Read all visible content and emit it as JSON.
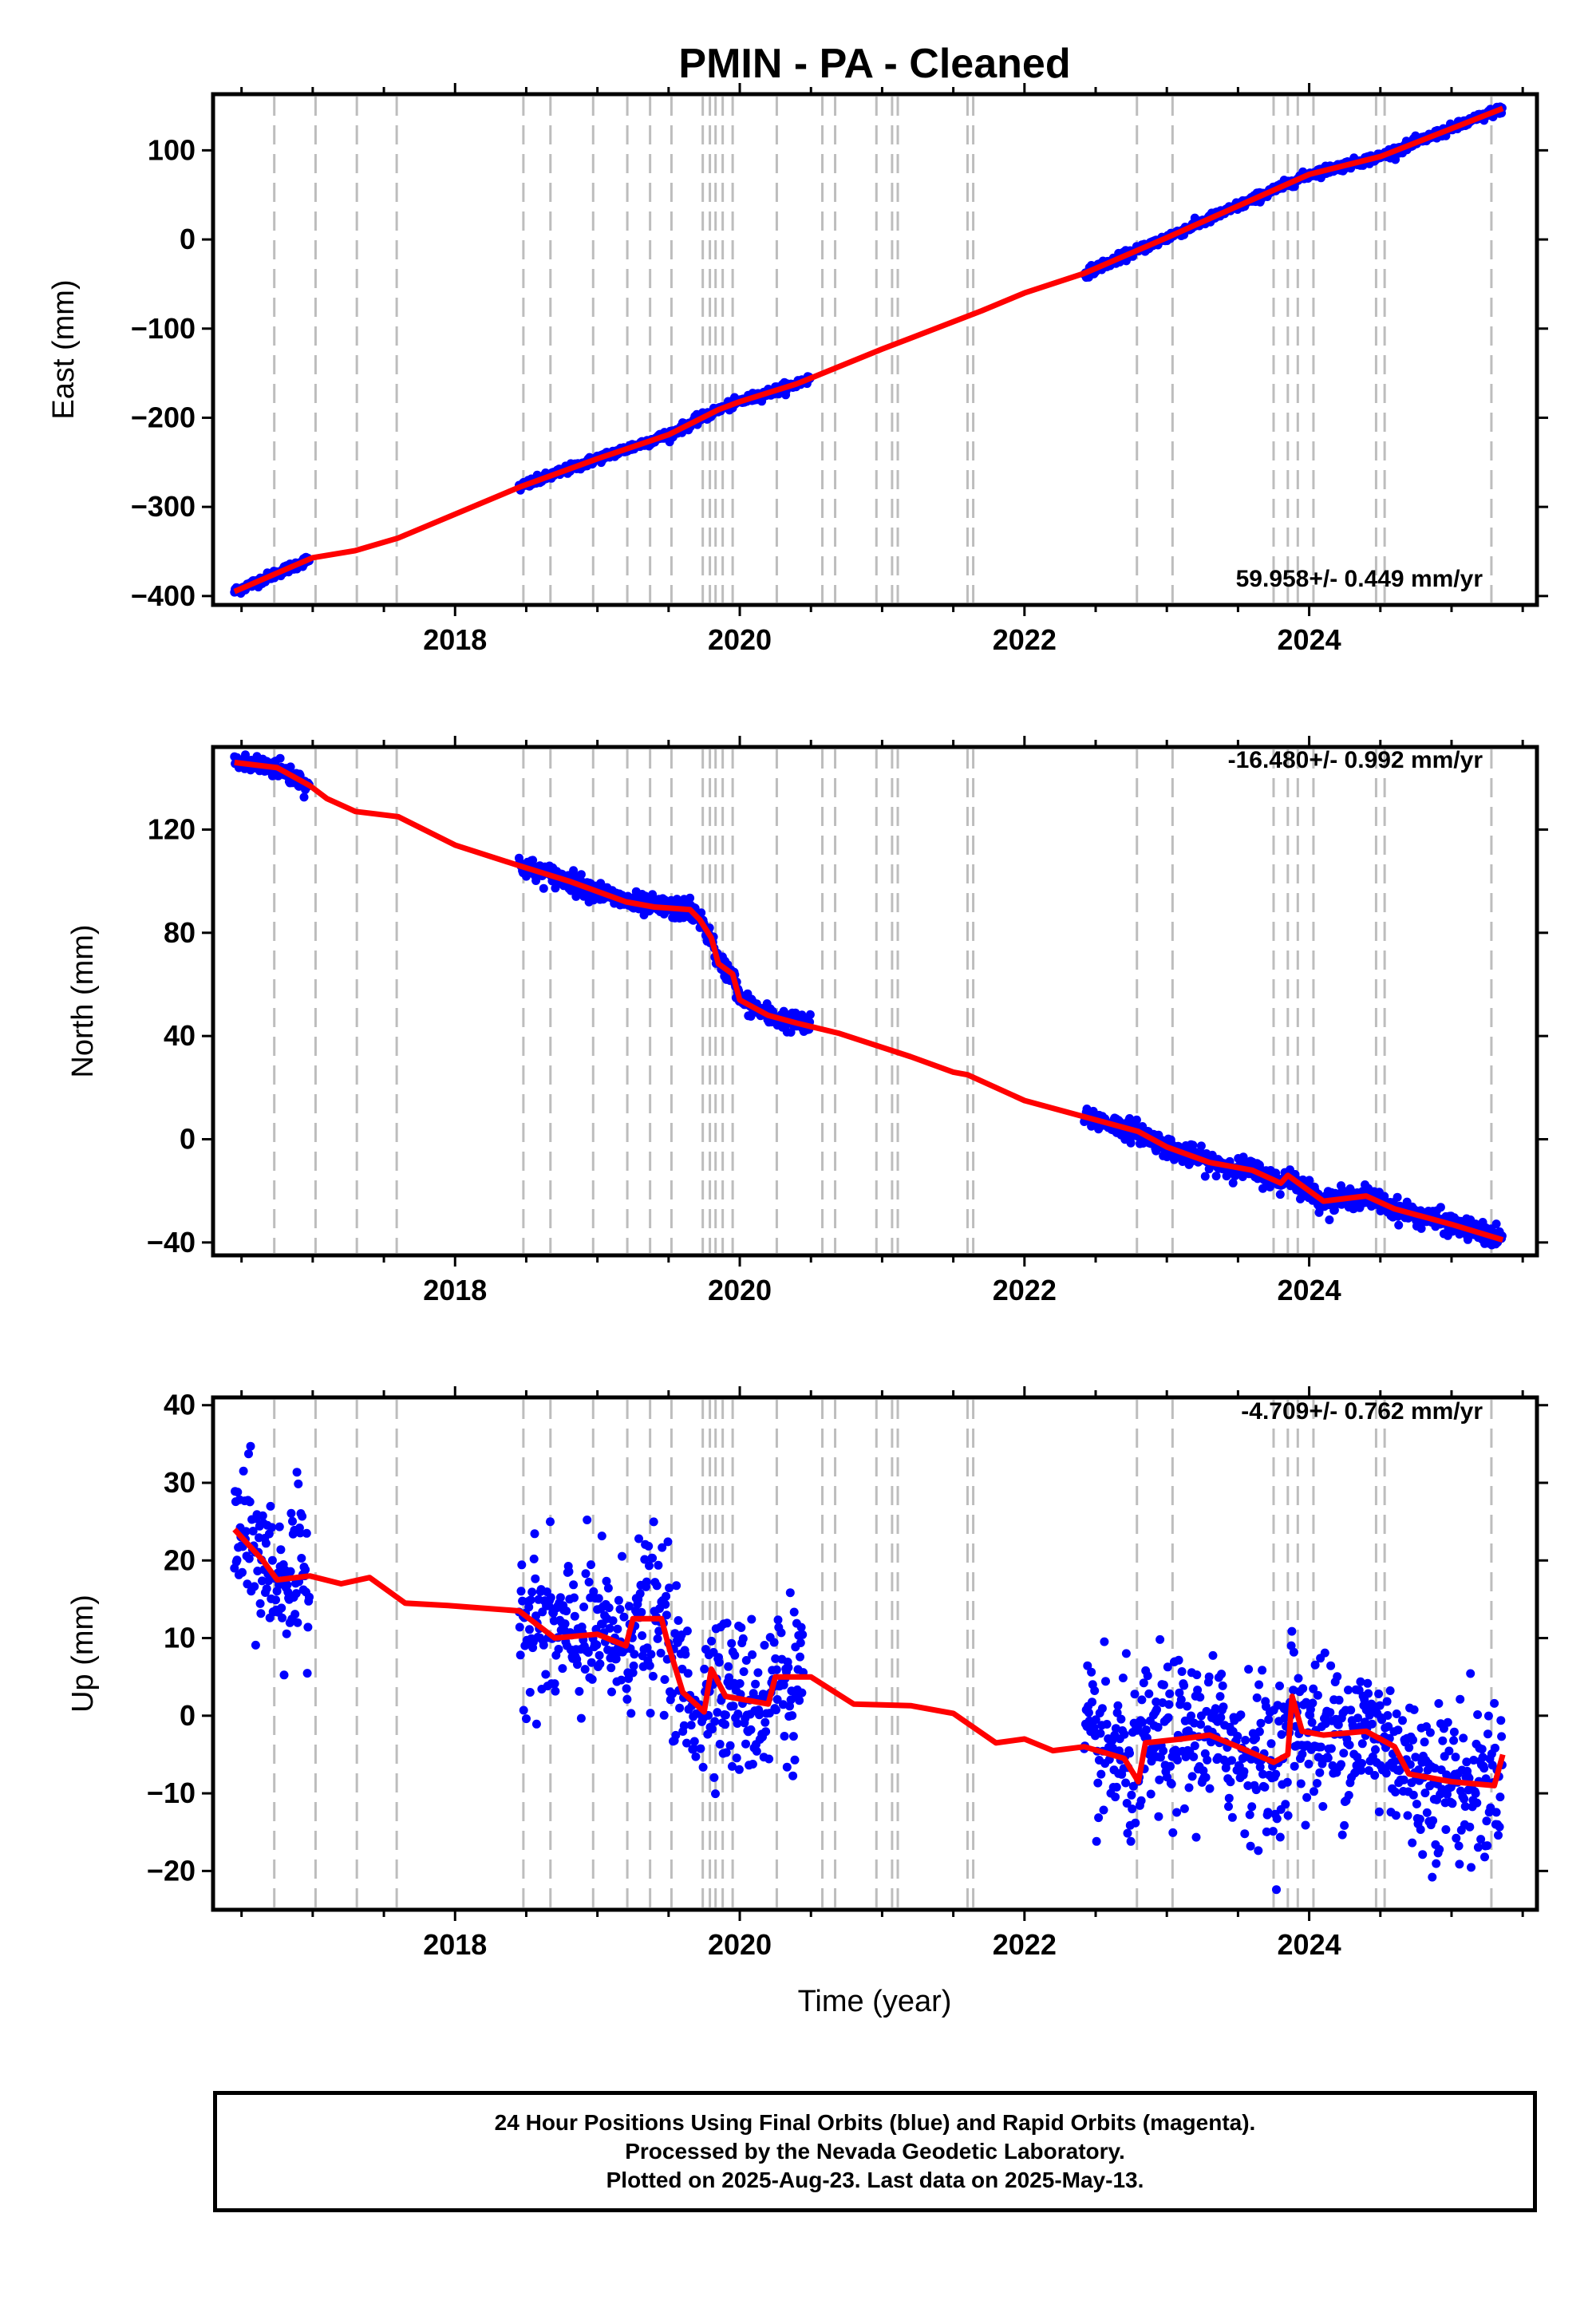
{
  "title": "PMIN  - PA - Cleaned",
  "xlabel": "Time (year)",
  "footer": {
    "line1": "24 Hour Positions Using Final Orbits (blue) and Rapid Orbits (magenta).",
    "line2": "Processed by the Nevada Geodetic Laboratory.",
    "line3": "Plotted on 2025-Aug-23. Last data on 2025-May-13."
  },
  "colors": {
    "data": "#0000ff",
    "model": "#ff0000",
    "event_lines": "#bdbdbd",
    "frame": "#000000"
  },
  "chart_data": [
    {
      "type": "scatter",
      "component": "east",
      "ylabel": "East (mm)",
      "rate": "59.958+/- 0.449 mm/yr",
      "xlim": [
        2016.3,
        2025.6
      ],
      "ylim": [
        -410,
        163
      ],
      "xticks": [
        2018,
        2020,
        2022,
        2024
      ],
      "yticks": [
        -400,
        -300,
        -200,
        -100,
        0,
        100
      ],
      "ytick_labels": [
        "−400",
        "−300",
        "−200",
        "−100",
        "0",
        "100"
      ],
      "data_segments": [
        [
          2016.45,
          2016.98
        ],
        [
          2018.45,
          2019.88
        ],
        [
          2019.9,
          2020.5
        ],
        [
          2022.42,
          2025.36
        ]
      ],
      "model_points": [
        [
          2016.45,
          -395
        ],
        [
          2017.0,
          -357
        ],
        [
          2017.3,
          -349
        ],
        [
          2017.6,
          -335
        ],
        [
          2018.45,
          -278
        ],
        [
          2019.0,
          -246
        ],
        [
          2019.5,
          -219
        ],
        [
          2019.85,
          -191
        ],
        [
          2020.0,
          -182
        ],
        [
          2020.4,
          -162
        ],
        [
          2021.0,
          -123
        ],
        [
          2021.7,
          -80
        ],
        [
          2022.0,
          -60
        ],
        [
          2022.42,
          -38
        ],
        [
          2023.0,
          2
        ],
        [
          2024.0,
          73
        ],
        [
          2024.5,
          93
        ],
        [
          2025.36,
          147
        ]
      ],
      "scatter_sd": 2.5
    },
    {
      "type": "scatter",
      "component": "north",
      "ylabel": "North (mm)",
      "rate": "-16.480+/- 0.992 mm/yr",
      "xlim": [
        2016.3,
        2025.6
      ],
      "ylim": [
        -45,
        152
      ],
      "xticks": [
        2018,
        2020,
        2022,
        2024
      ],
      "yticks": [
        -40,
        0,
        40,
        80,
        120
      ],
      "ytick_labels": [
        "−40",
        "0",
        "40",
        "80",
        "120"
      ],
      "data_segments": [
        [
          2016.45,
          2016.98
        ],
        [
          2018.45,
          2019.7
        ],
        [
          2019.72,
          2020.5
        ],
        [
          2022.42,
          2025.36
        ]
      ],
      "model_points": [
        [
          2016.45,
          146
        ],
        [
          2016.75,
          144
        ],
        [
          2016.98,
          137
        ],
        [
          2017.1,
          132
        ],
        [
          2017.3,
          127
        ],
        [
          2017.6,
          125
        ],
        [
          2018.0,
          114
        ],
        [
          2018.45,
          106
        ],
        [
          2018.8,
          100
        ],
        [
          2019.2,
          92
        ],
        [
          2019.4,
          90
        ],
        [
          2019.65,
          89
        ],
        [
          2019.72,
          85
        ],
        [
          2019.8,
          78
        ],
        [
          2019.85,
          68
        ],
        [
          2019.95,
          64
        ],
        [
          2020.0,
          54
        ],
        [
          2020.2,
          48
        ],
        [
          2020.4,
          45
        ],
        [
          2020.7,
          41
        ],
        [
          2021.2,
          32
        ],
        [
          2021.5,
          26
        ],
        [
          2021.6,
          25
        ],
        [
          2022.0,
          15
        ],
        [
          2022.4,
          9
        ],
        [
          2022.8,
          3
        ],
        [
          2023.0,
          -3
        ],
        [
          2023.3,
          -9
        ],
        [
          2023.6,
          -12
        ],
        [
          2023.8,
          -17
        ],
        [
          2023.85,
          -14
        ],
        [
          2023.95,
          -18
        ],
        [
          2024.1,
          -24
        ],
        [
          2024.4,
          -22
        ],
        [
          2024.6,
          -27
        ],
        [
          2025.0,
          -33
        ],
        [
          2025.36,
          -39
        ]
      ],
      "scatter_sd": 2.0
    },
    {
      "type": "scatter",
      "component": "up",
      "ylabel": "Up (mm)",
      "rate": "-4.709+/- 0.762 mm/yr",
      "xlim": [
        2016.3,
        2025.6
      ],
      "ylim": [
        -25,
        41
      ],
      "xticks": [
        2018,
        2020,
        2022,
        2024
      ],
      "yticks": [
        -20,
        -10,
        0,
        10,
        20,
        30,
        40
      ],
      "ytick_labels": [
        "−20",
        "−10",
        "0",
        "10",
        "20",
        "30",
        "40"
      ],
      "data_segments": [
        [
          2016.45,
          2016.98
        ],
        [
          2018.45,
          2019.7
        ],
        [
          2019.72,
          2020.45
        ],
        [
          2022.42,
          2025.36
        ]
      ],
      "model_points": [
        [
          2016.45,
          24
        ],
        [
          2016.65,
          20
        ],
        [
          2016.75,
          17.5
        ],
        [
          2016.98,
          18
        ],
        [
          2017.2,
          17
        ],
        [
          2017.4,
          17.8
        ],
        [
          2017.65,
          14.5
        ],
        [
          2017.95,
          14.2
        ],
        [
          2018.45,
          13.5
        ],
        [
          2018.7,
          10
        ],
        [
          2019.0,
          10.5
        ],
        [
          2019.2,
          9
        ],
        [
          2019.25,
          12.5
        ],
        [
          2019.45,
          12.5
        ],
        [
          2019.5,
          9
        ],
        [
          2019.6,
          3
        ],
        [
          2019.75,
          0.5
        ],
        [
          2019.8,
          6
        ],
        [
          2019.9,
          2.5
        ],
        [
          2020.2,
          1.5
        ],
        [
          2020.25,
          5
        ],
        [
          2020.5,
          5
        ],
        [
          2020.8,
          1.5
        ],
        [
          2021.2,
          1.3
        ],
        [
          2021.5,
          0.3
        ],
        [
          2021.8,
          -3.5
        ],
        [
          2022.0,
          -3
        ],
        [
          2022.2,
          -4.5
        ],
        [
          2022.42,
          -4
        ],
        [
          2022.7,
          -5.5
        ],
        [
          2022.8,
          -8.5
        ],
        [
          2022.85,
          -3.5
        ],
        [
          2023.1,
          -3
        ],
        [
          2023.3,
          -2.5
        ],
        [
          2023.5,
          -4
        ],
        [
          2023.75,
          -6
        ],
        [
          2023.85,
          -5
        ],
        [
          2023.88,
          2.5
        ],
        [
          2023.95,
          -2
        ],
        [
          2024.1,
          -2.5
        ],
        [
          2024.4,
          -2
        ],
        [
          2024.6,
          -4
        ],
        [
          2024.7,
          -7.5
        ],
        [
          2025.0,
          -8.5
        ],
        [
          2025.3,
          -9
        ],
        [
          2025.36,
          -5
        ]
      ],
      "scatter_sd": 5.0
    }
  ],
  "event_lines": [
    2016.73,
    2017.02,
    2017.31,
    2017.59,
    2018.48,
    2018.67,
    2018.97,
    2019.21,
    2019.37,
    2019.52,
    2019.74,
    2019.79,
    2019.83,
    2019.88,
    2019.95,
    2020.26,
    2020.58,
    2020.67,
    2020.96,
    2021.07,
    2021.11,
    2021.6,
    2021.64,
    2022.79,
    2023.04,
    2023.75,
    2023.85,
    2023.92,
    2024.03,
    2024.47,
    2024.53,
    2025.28
  ]
}
